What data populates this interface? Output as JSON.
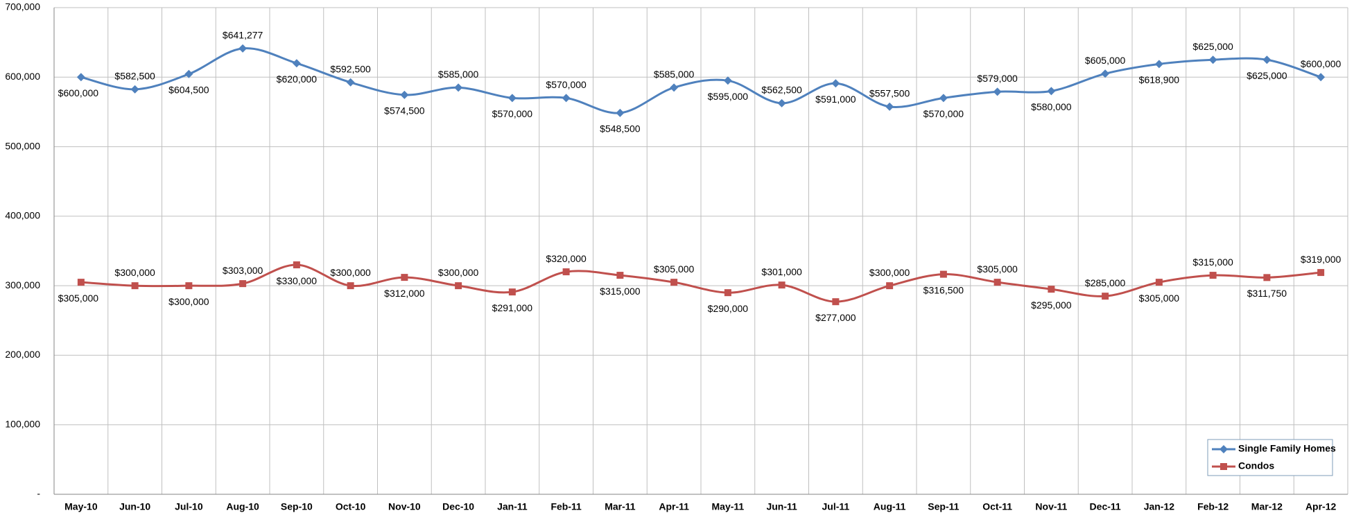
{
  "chart_data": {
    "type": "line",
    "categories": [
      "May-10",
      "Jun-10",
      "Jul-10",
      "Aug-10",
      "Sep-10",
      "Oct-10",
      "Nov-10",
      "Dec-10",
      "Jan-11",
      "Feb-11",
      "Mar-11",
      "Apr-11",
      "May-11",
      "Jun-11",
      "Jul-11",
      "Aug-11",
      "Sep-11",
      "Oct-11",
      "Nov-11",
      "Dec-11",
      "Jan-12",
      "Feb-12",
      "Mar-12",
      "Apr-12"
    ],
    "series": [
      {
        "name": "Single Family Homes",
        "color": "#4f81bd",
        "marker": "diamond",
        "values": [
          600000,
          582500,
          604500,
          641277,
          620000,
          592500,
          574500,
          585000,
          570000,
          570000,
          548500,
          585000,
          595000,
          562500,
          591000,
          557500,
          570000,
          579000,
          580000,
          605000,
          618900,
          625000,
          625000,
          600000
        ],
        "value_labels": [
          "$600,000",
          "$582,500",
          "$604,500",
          "$641,277",
          "$620,000",
          "$592,500",
          "$574,500",
          "$585,000",
          "$570,000",
          "$570,000",
          "$548,500",
          "$585,000",
          "$595,000",
          "$562,500",
          "$591,000",
          "$557,500",
          "$570,000",
          "$579,000",
          "$580,000",
          "$605,000",
          "$618,900",
          "$625,000",
          "$625,000",
          "$600,000"
        ]
      },
      {
        "name": "Condos",
        "color": "#c0504d",
        "marker": "square",
        "values": [
          305000,
          300000,
          300000,
          303000,
          330000,
          300000,
          312000,
          300000,
          291000,
          320000,
          315000,
          305000,
          290000,
          301000,
          277000,
          300000,
          316500,
          305000,
          295000,
          285000,
          305000,
          315000,
          311750,
          319000
        ],
        "value_labels": [
          "$305,000",
          "$300,000",
          "$300,000",
          "$303,000",
          "$330,000",
          "$300,000",
          "$312,000",
          "$300,000",
          "$291,000",
          "$320,000",
          "$315,000",
          "$305,000",
          "$290,000",
          "$301,000",
          "$277,000",
          "$300,000",
          "$316,500",
          "$305,000",
          "$295,000",
          "$285,000",
          "$305,000",
          "$315,000",
          "$311,750",
          "$319,000"
        ]
      }
    ],
    "ylim": [
      0,
      700000
    ],
    "yticks": [
      {
        "value": 0,
        "label": "-"
      },
      {
        "value": 100000,
        "label": "100,000"
      },
      {
        "value": 200000,
        "label": "200,000"
      },
      {
        "value": 300000,
        "label": "300,000"
      },
      {
        "value": 400000,
        "label": "400,000"
      },
      {
        "value": 500000,
        "label": "500,000"
      },
      {
        "value": 600000,
        "label": "600,000"
      },
      {
        "value": 700000,
        "label": "700,000"
      }
    ],
    "grid": true,
    "smooth": true,
    "legend_position": "bottom-right"
  }
}
